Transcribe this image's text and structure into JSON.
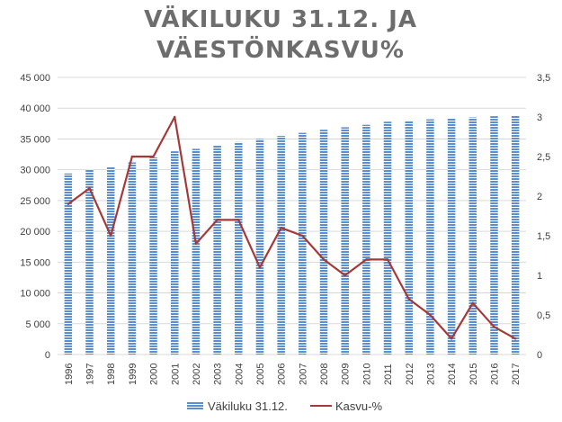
{
  "chart_data": {
    "type": "bar+line",
    "title_lines": [
      "VÄKILUKU 31.12. JA",
      "VÄESTÖNKASVU%"
    ],
    "categories": [
      "1996",
      "1997",
      "1998",
      "1999",
      "2000",
      "2001",
      "2002",
      "2003",
      "2004",
      "2005",
      "2006",
      "2007",
      "2008",
      "2009",
      "2010",
      "2011",
      "2012",
      "2013",
      "2014",
      "2015",
      "2016",
      "2017"
    ],
    "series": [
      {
        "name": "Väkiluku 31.12.",
        "type": "bar",
        "axis": "left",
        "values": [
          29400,
          30000,
          30500,
          31200,
          32000,
          33000,
          33400,
          34000,
          34500,
          35000,
          35500,
          36000,
          36500,
          36900,
          37300,
          37800,
          38000,
          38200,
          38300,
          38500,
          38700,
          38800
        ]
      },
      {
        "name": "Kasvu-%",
        "type": "line",
        "axis": "right",
        "values": [
          1.9,
          2.1,
          1.5,
          2.5,
          2.5,
          3.0,
          1.4,
          1.7,
          1.7,
          1.1,
          1.6,
          1.5,
          1.2,
          1.0,
          1.2,
          1.2,
          0.7,
          0.5,
          0.2,
          0.65,
          0.35,
          0.2
        ]
      }
    ],
    "y_left": {
      "min": 0,
      "max": 45000,
      "ticks": [
        "0",
        "5 000",
        "10 000",
        "15 000",
        "20 000",
        "25 000",
        "30 000",
        "35 000",
        "40 000",
        "45 000"
      ]
    },
    "y_right": {
      "min": 0,
      "max": 3.5,
      "ticks": [
        "0",
        "0,5",
        "1",
        "1,5",
        "2",
        "2,5",
        "3",
        "3,5"
      ]
    },
    "grid": true,
    "legend": "bottom",
    "colors": {
      "bar": "#5b8fd0",
      "bar_stripe": "#ffffff",
      "line": "#a33a3a",
      "title": "#6d6d6d"
    }
  }
}
